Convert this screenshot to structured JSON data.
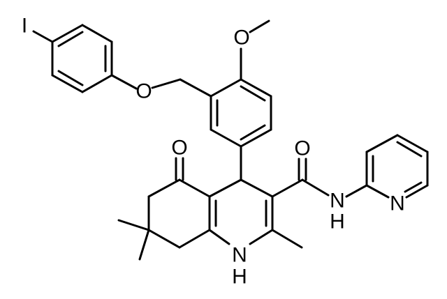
{
  "atoms": [
    {
      "label": "I"
    },
    {
      "label": "O"
    },
    {
      "label": "O"
    },
    {
      "label": "O"
    },
    {
      "label": "O"
    },
    {
      "label": "N"
    },
    {
      "label": "N"
    },
    {
      "label": "H"
    },
    {
      "label": "N"
    },
    {
      "label": "H"
    }
  ]
}
